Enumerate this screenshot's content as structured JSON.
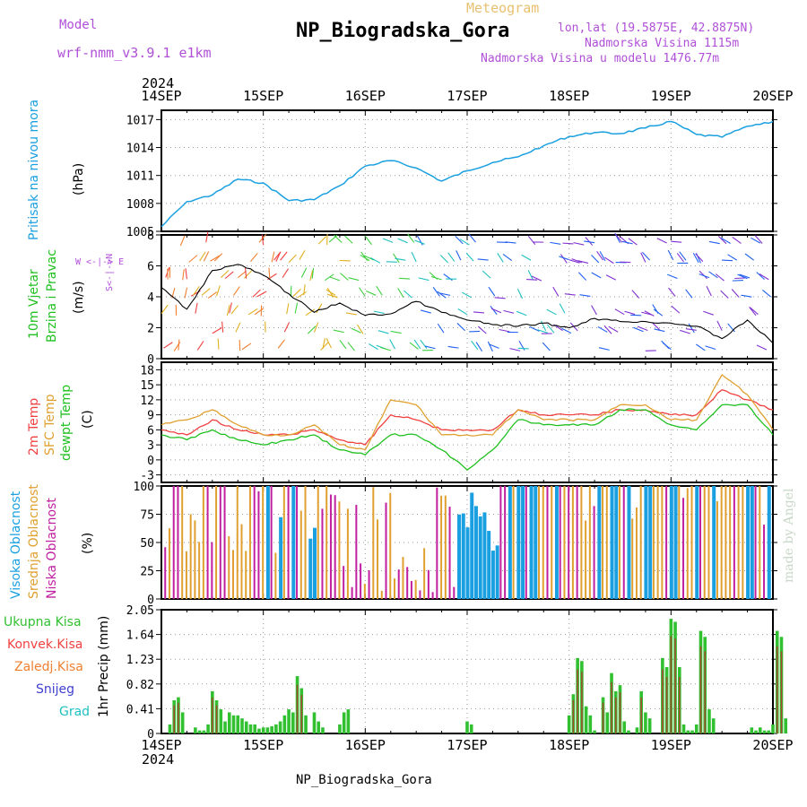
{
  "header": {
    "model_label": "Model",
    "model_name": "wrf-nmm_v3.9.1 e1km",
    "meteogram_label": "Meteogram",
    "station_title": "NP_Biogradska_Gora",
    "lonlat": "lon,lat (19.5875E, 42.8875N)",
    "elevation": "Nadmorska Visina 1115m",
    "model_elevation": "Nadmorska Visina u modelu 1476.77m",
    "footer_station": "NP_Biogradska_Gora",
    "credit": "made by Angel"
  },
  "time_axis": {
    "year": "2024",
    "dates": [
      "14SEP",
      "15SEP",
      "16SEP",
      "17SEP",
      "18SEP",
      "19SEP",
      "20SEP"
    ]
  },
  "colors": {
    "pressure": "#1aa0e0",
    "wind_speed": "#000000",
    "t2m": "#f04040",
    "sfc": "#e0a030",
    "dewpt": "#20c020",
    "high_cloud": "#1aa0e0",
    "mid_cloud": "#e0a030",
    "low_cloud": "#c020a0",
    "total_precip": "#30c030",
    "conv_precip": "#a05030"
  },
  "panels": {
    "pressure": {
      "label_line1": "Pritisak na nivou mora",
      "unit": "(hPa)"
    },
    "wind": {
      "label_line1": "10m Vjetar",
      "label_line2": "Brzina i Pravac",
      "unit": "(m/s)",
      "compass_ew": "W <-|-> E",
      "compass_ns": "S<-|->N"
    },
    "temp": {
      "label_t2m": "2m Temp",
      "label_sfc": "SFC Temp",
      "label_dew": "dewpt Temp",
      "unit": "(C)"
    },
    "cloud": {
      "label_high": "Visoka Oblacnost",
      "label_mid": "Srednja Oblacnost",
      "label_low": "Niska Oblacnost",
      "unit": "(%)"
    },
    "precip": {
      "label_total": "Ukupna Kisa",
      "label_conv": "Konvek.Kisa",
      "label_frz": "Zaledj.Kisa",
      "label_snow": "Snijeg",
      "label_grad": "Grad",
      "unit": "1hr Precip (mm)"
    }
  },
  "chart_data": [
    {
      "type": "line",
      "name": "pressure",
      "ylim": [
        1005,
        1018
      ],
      "yticks": [
        1005,
        1008,
        1011,
        1014,
        1017
      ],
      "x_hours": [
        0,
        6,
        12,
        18,
        24,
        30,
        36,
        42,
        48,
        54,
        60,
        66,
        72,
        78,
        84,
        90,
        96,
        102,
        108,
        114,
        120,
        126,
        132,
        138,
        144
      ],
      "series": [
        {
          "values": [
            1005.5,
            1008.2,
            1008.9,
            1010.6,
            1010.2,
            1008.3,
            1008.4,
            1009.9,
            1012.0,
            1012.6,
            1011.8,
            1010.4,
            1011.5,
            1012.4,
            1013.0,
            1014.2,
            1015.2,
            1015.6,
            1015.5,
            1016.1,
            1016.8,
            1015.4,
            1015.1,
            1016.3,
            1016.8
          ]
        }
      ]
    },
    {
      "type": "line",
      "name": "wind_speed",
      "ylim": [
        0,
        8
      ],
      "yticks": [
        0,
        2,
        4,
        6,
        8
      ],
      "x_hours": [
        0,
        6,
        12,
        18,
        24,
        30,
        36,
        42,
        48,
        54,
        60,
        66,
        72,
        78,
        84,
        90,
        96,
        102,
        108,
        114,
        120,
        126,
        132,
        138,
        144
      ],
      "series": [
        {
          "values": [
            4.6,
            3.2,
            5.7,
            6.1,
            5.4,
            4.2,
            3.0,
            3.6,
            2.8,
            2.9,
            3.7,
            3.0,
            2.5,
            2.2,
            2.1,
            2.3,
            2.0,
            2.6,
            2.4,
            2.4,
            2.3,
            2.1,
            1.3,
            2.5,
            1.0
          ]
        }
      ]
    },
    {
      "type": "line",
      "name": "temperature",
      "ylim": [
        -4.5,
        19.5
      ],
      "yticks": [
        -3,
        0,
        3,
        6,
        9,
        12,
        15,
        18
      ],
      "x_hours": [
        0,
        6,
        12,
        18,
        24,
        30,
        36,
        42,
        48,
        54,
        60,
        66,
        72,
        78,
        84,
        90,
        96,
        102,
        108,
        114,
        120,
        126,
        132,
        138,
        144
      ],
      "series": [
        {
          "values": [
            6,
            5,
            8,
            6,
            5,
            5,
            6,
            4,
            3,
            9,
            8,
            6,
            6,
            6,
            10,
            9,
            9,
            9,
            10,
            10,
            9,
            9,
            14,
            12,
            10
          ]
        },
        {
          "values": [
            7,
            8,
            10,
            7,
            5,
            5,
            7,
            3,
            2,
            12,
            11,
            5,
            5,
            5,
            10,
            8,
            8,
            8,
            11,
            11,
            8,
            8,
            17,
            13,
            6
          ]
        },
        {
          "values": [
            5,
            4,
            6,
            4,
            3,
            4,
            5,
            2,
            1,
            5,
            5,
            2,
            -2,
            2,
            8,
            7,
            7,
            7,
            10,
            10,
            7,
            6,
            11,
            11,
            5
          ]
        }
      ]
    },
    {
      "type": "bar",
      "name": "cloud_cover",
      "ylim": [
        0,
        100
      ],
      "yticks": [
        0,
        25,
        50,
        75,
        100
      ]
    },
    {
      "type": "bar",
      "name": "precipitation",
      "ylim": [
        0,
        2.05
      ],
      "yticks": [
        0,
        0.41,
        0.82,
        1.23,
        1.64,
        2.05
      ],
      "x_hours": [
        2,
        3,
        4,
        5,
        8,
        9,
        10,
        11,
        12,
        13,
        14,
        15,
        16,
        17,
        18,
        19,
        20,
        21,
        22,
        23,
        24,
        25,
        26,
        27,
        28,
        29,
        30,
        31,
        32,
        33,
        34,
        36,
        37,
        38,
        42,
        43,
        44,
        72,
        73,
        96,
        97,
        98,
        99,
        100,
        101,
        102,
        104,
        105,
        106,
        107,
        108,
        109,
        110,
        112,
        113,
        114,
        115,
        118,
        119,
        120,
        121,
        122,
        123,
        124,
        125,
        126,
        127,
        128,
        129,
        130,
        139,
        140,
        141,
        142,
        143,
        144,
        145,
        146,
        147
      ],
      "series": [
        {
          "values": [
            0.15,
            0.55,
            0.6,
            0.35,
            0.1,
            0.05,
            0.05,
            0.15,
            0.7,
            0.55,
            0.4,
            0.2,
            0.35,
            0.3,
            0.3,
            0.25,
            0.2,
            0.15,
            0.15,
            0.08,
            0.1,
            0.1,
            0.12,
            0.15,
            0.2,
            0.3,
            0.4,
            0.35,
            0.95,
            0.75,
            0.3,
            0.35,
            0.2,
            0.1,
            0.15,
            0.35,
            0.4,
            0.2,
            0.15,
            0.3,
            0.65,
            1.25,
            1.2,
            0.45,
            0.3,
            0.05,
            0.6,
            0.35,
            1.0,
            0.7,
            0.8,
            0.2,
            0.05,
            0.1,
            0.7,
            0.35,
            0.25,
            1.25,
            1.1,
            1.9,
            1.85,
            1.1,
            0.15,
            0.05,
            0.05,
            0.15,
            1.7,
            1.6,
            0.4,
            0.25,
            0.1,
            0.05,
            0.1,
            0.05,
            0.05,
            0.15,
            1.7,
            1.6,
            0.25
          ]
        }
      ]
    }
  ]
}
